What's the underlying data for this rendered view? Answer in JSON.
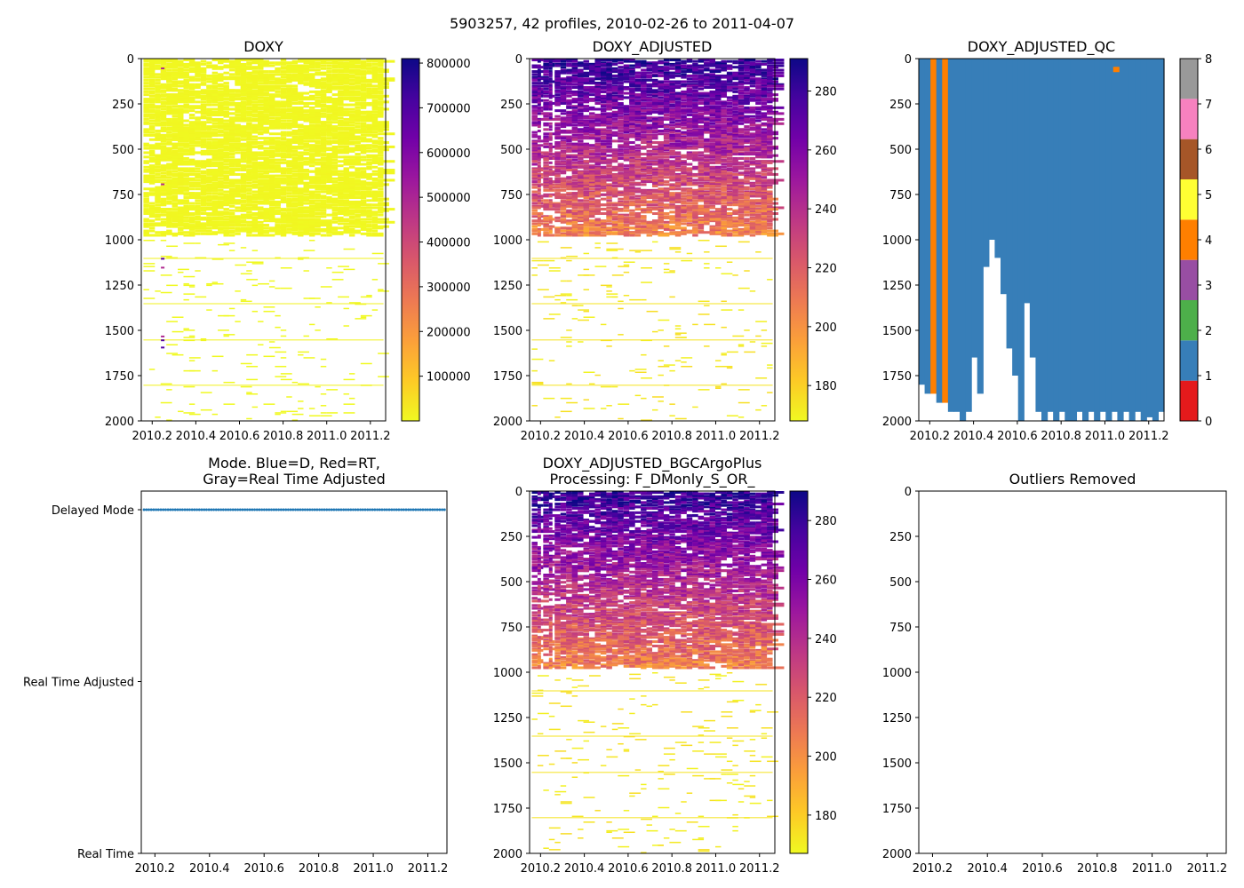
{
  "figure_title": "5903257, 42 profiles, 2010-02-26 to 2011-04-07",
  "colors": {
    "plasma": [
      "#0d0887",
      "#46039f",
      "#7201a8",
      "#9c179e",
      "#bd3786",
      "#d8576b",
      "#ed7953",
      "#fb9f3a",
      "#fdca26",
      "#f0f921"
    ],
    "qc": [
      "#e41a1c",
      "#377eb8",
      "#4daf4a",
      "#984ea3",
      "#ff7f00",
      "#ffff33",
      "#a65628",
      "#f781bf",
      "#999999"
    ],
    "mode_line": "#1f77b4"
  },
  "chart_data": [
    {
      "id": "doxy",
      "type": "heatmap",
      "title": "DOXY",
      "ylim": [
        2000,
        0
      ],
      "xlim": [
        2010.15,
        2011.27
      ],
      "x_ticks": [
        "2010.2",
        "2010.4",
        "2010.6",
        "2010.8",
        "2011.0",
        "2011.2"
      ],
      "y_ticks": [
        "0",
        "250",
        "500",
        "750",
        "1000",
        "1250",
        "1500",
        "1750",
        "2000"
      ],
      "colorbar": {
        "range": [
          0,
          810000
        ],
        "ticks": [
          "100000",
          "200000",
          "300000",
          "400000",
          "500000",
          "600000",
          "700000",
          "800000"
        ],
        "reversed": true
      },
      "max_depth_dense": 970
    },
    {
      "id": "doxy_adjusted",
      "type": "heatmap",
      "title": "DOXY_ADJUSTED",
      "ylim": [
        2000,
        0
      ],
      "xlim": [
        2010.15,
        2011.27
      ],
      "x_ticks": [
        "2010.2",
        "2010.4",
        "2010.6",
        "2010.8",
        "2011.0",
        "2011.2"
      ],
      "y_ticks": [
        "0",
        "250",
        "500",
        "750",
        "1000",
        "1250",
        "1500",
        "1750",
        "2000"
      ],
      "colorbar": {
        "range": [
          168,
          291
        ],
        "ticks": [
          "180",
          "200",
          "220",
          "240",
          "260",
          "280"
        ]
      },
      "max_depth_dense": 970
    },
    {
      "id": "doxy_adjusted_qc",
      "type": "heatmap",
      "title": "DOXY_ADJUSTED_QC",
      "ylim": [
        2000,
        0
      ],
      "xlim": [
        2010.15,
        2011.27
      ],
      "x_ticks": [
        "2010.2",
        "2010.4",
        "2010.6",
        "2010.8",
        "2011.0",
        "2011.2"
      ],
      "y_ticks": [
        "0",
        "250",
        "500",
        "750",
        "1000",
        "1250",
        "1500",
        "1750",
        "2000"
      ],
      "colorbar": {
        "range": [
          0,
          8
        ],
        "ticks": [
          "0",
          "1",
          "2",
          "3",
          "4",
          "5",
          "6",
          "7",
          "8"
        ]
      },
      "profile_bottom_depths": [
        1800,
        1850,
        1850,
        1900,
        1900,
        1950,
        1950,
        2000,
        1950,
        1650,
        1850,
        1150,
        1000,
        1100,
        1300,
        1600,
        1750,
        2000,
        1350,
        1650,
        1950,
        2000,
        1950,
        2000,
        1950,
        2000,
        2000,
        1950,
        2000,
        1950,
        2000,
        1950,
        2000,
        1950,
        2000,
        1950,
        2000,
        1950,
        2000,
        1980,
        2000,
        1950
      ],
      "qc4_profiles": [
        2,
        4
      ],
      "qc4_spot": {
        "x": 2011.05,
        "depth": 60
      }
    },
    {
      "id": "mode",
      "type": "scatter",
      "title": "Mode. Blue=D, Red=RT,\nGray=Real Time Adjusted",
      "title_lines": [
        "Mode. Blue=D, Red=RT,",
        "Gray=Real Time Adjusted"
      ],
      "xlim": [
        2010.15,
        2011.27
      ],
      "x_ticks": [
        "2010.2",
        "2010.4",
        "2010.6",
        "2010.8",
        "2011.0",
        "2011.2"
      ],
      "y_categories": [
        "Real Time",
        "Real Time Adjusted",
        "Delayed Mode"
      ],
      "points": {
        "mode": "Delayed Mode",
        "count": 42,
        "x_start": 2010.16,
        "x_end": 2011.26
      }
    },
    {
      "id": "doxy_adjusted_bgc",
      "type": "heatmap",
      "title": "DOXY_ADJUSTED_BGCArgoPlus\nProcessing: F_DMonly_S_OR_",
      "title_lines": [
        "DOXY_ADJUSTED_BGCArgoPlus",
        "Processing: F_DMonly_S_OR_"
      ],
      "ylim": [
        2000,
        0
      ],
      "xlim": [
        2010.15,
        2011.27
      ],
      "x_ticks": [
        "2010.2",
        "2010.4",
        "2010.6",
        "2010.8",
        "2011.0",
        "2011.2"
      ],
      "y_ticks": [
        "0",
        "250",
        "500",
        "750",
        "1000",
        "1250",
        "1500",
        "1750",
        "2000"
      ],
      "colorbar": {
        "range": [
          167,
          290
        ],
        "ticks": [
          "180",
          "200",
          "220",
          "240",
          "260",
          "280"
        ]
      },
      "max_depth_dense": 970
    },
    {
      "id": "outliers",
      "type": "scatter",
      "title": "Outliers Removed",
      "ylim": [
        2000,
        0
      ],
      "xlim": [
        2010.15,
        2011.27
      ],
      "x_ticks": [
        "2010.2",
        "2010.4",
        "2010.6",
        "2010.8",
        "2011.0",
        "2011.2"
      ],
      "y_ticks": [
        "0",
        "250",
        "500",
        "750",
        "1000",
        "1250",
        "1500",
        "1750",
        "2000"
      ],
      "points": []
    }
  ]
}
